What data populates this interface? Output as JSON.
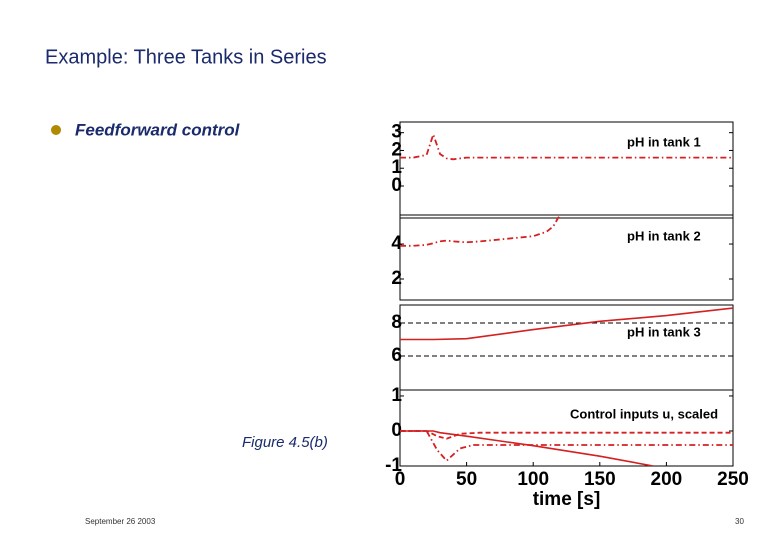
{
  "slide": {
    "title": "Example: Three Tanks in Series",
    "bullet": "Feedforward control",
    "figure_caption": "Figure 4.5(b)",
    "footer_date": "September 26 2003",
    "page_number": 30
  },
  "chart_data": [
    {
      "type": "line",
      "annotation": "pH in tank 1",
      "xlim": [
        0,
        250
      ],
      "ylim": [
        -1.8,
        3.6
      ],
      "yticks": [
        0,
        1,
        2,
        3
      ],
      "series": [
        {
          "color": "#d42020",
          "style": "dashdot",
          "x": [
            0,
            10,
            20,
            25,
            30,
            35,
            40,
            50,
            60,
            80,
            100,
            120,
            140,
            160,
            180,
            200,
            220,
            240,
            250
          ],
          "values": [
            1.6,
            1.6,
            1.75,
            2.9,
            1.8,
            1.55,
            1.5,
            1.6,
            1.6,
            1.6,
            1.6,
            1.6,
            1.6,
            1.6,
            1.6,
            1.6,
            1.6,
            1.6,
            1.6
          ]
        }
      ]
    },
    {
      "type": "line",
      "annotation": "pH in tank 2",
      "xlim": [
        0,
        250
      ],
      "ylim": [
        0.8,
        5.66
      ],
      "yticks": [
        2,
        4
      ],
      "series": [
        {
          "color": "#d42020",
          "style": "dashdot",
          "x": [
            0,
            10,
            20,
            25,
            30,
            35,
            40,
            50,
            60,
            80,
            100,
            110,
            115,
            120,
            140,
            160,
            180,
            200,
            220,
            240,
            250
          ],
          "values": [
            3.9,
            3.9,
            3.95,
            4.05,
            4.15,
            4.2,
            4.15,
            4.1,
            4.15,
            4.3,
            4.45,
            4.7,
            5.0,
            5.66,
            null,
            null,
            null,
            null,
            null,
            null,
            null
          ]
        }
      ]
    },
    {
      "type": "line",
      "annotation": "pH in tank 3",
      "xlim": [
        0,
        250
      ],
      "ylim": [
        3.94,
        9.09
      ],
      "yticks": [
        6,
        8
      ],
      "series": [
        {
          "color": "#000000",
          "style": "dashed",
          "x": [
            0,
            250
          ],
          "values": [
            8,
            8
          ]
        },
        {
          "color": "#000000",
          "style": "dashed",
          "x": [
            0,
            250
          ],
          "values": [
            6,
            6
          ]
        },
        {
          "color": "#d42020",
          "style": "solid",
          "x": [
            0,
            25,
            50,
            100,
            150,
            200,
            250
          ],
          "values": [
            7.0,
            7.0,
            7.05,
            7.6,
            8.1,
            8.45,
            8.9
          ]
        }
      ]
    },
    {
      "type": "line",
      "annotation": "Control inputs u, scaled",
      "xlabel": "time [s]",
      "xlim": [
        0,
        250
      ],
      "ylim": [
        -1,
        1.17
      ],
      "yticks": [
        -1,
        0,
        1
      ],
      "xticks": [
        0,
        50,
        100,
        150,
        200,
        250
      ],
      "series": [
        {
          "color": "#d42020",
          "style": "solid",
          "x": [
            0,
            25,
            30,
            50,
            100,
            150,
            190,
            250
          ],
          "values": [
            0,
            0,
            -0.05,
            -0.15,
            -0.42,
            -0.72,
            -1.0,
            null
          ]
        },
        {
          "color": "#d42020",
          "style": "dashed",
          "x": [
            0,
            20,
            28,
            35,
            45,
            60,
            100,
            250
          ],
          "values": [
            0,
            0,
            -0.15,
            -0.22,
            -0.08,
            -0.05,
            -0.05,
            -0.05
          ]
        },
        {
          "color": "#d42020",
          "style": "dashdot",
          "x": [
            0,
            20,
            28,
            35,
            45,
            55,
            100,
            250
          ],
          "values": [
            0,
            0,
            -0.55,
            -0.85,
            -0.5,
            -0.4,
            -0.4,
            -0.4
          ]
        }
      ]
    }
  ]
}
